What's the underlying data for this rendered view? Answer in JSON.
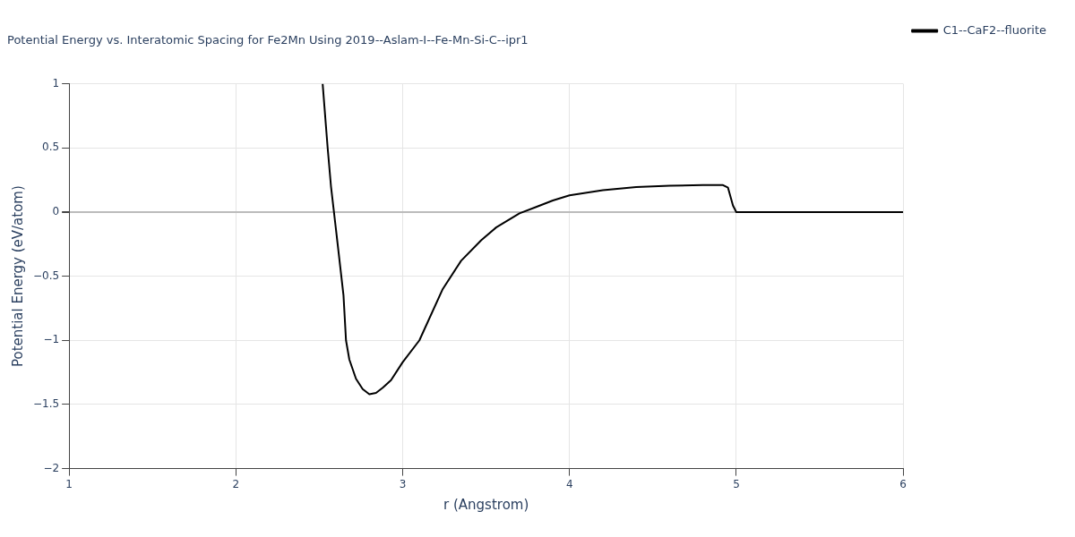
{
  "chart_data": {
    "type": "line",
    "title": "Potential Energy vs. Interatomic Spacing for Fe2Mn Using 2019--Aslam-I--Fe-Mn-Si-C--ipr1",
    "xlabel": "r (Angstrom)",
    "ylabel": "Potential Energy (eV/atom)",
    "xlim": [
      1,
      6
    ],
    "xticks": [
      1,
      2,
      3,
      4,
      5,
      6
    ],
    "ylim": [
      -2,
      1
    ],
    "yticks": [
      -2,
      -1.5,
      -1,
      -0.5,
      0,
      0.5,
      1
    ],
    "grid": true,
    "legend": "top right",
    "line_style": "solid",
    "marker": "none",
    "series": [
      {
        "name": "C1--CaF2--fluorite",
        "color": "#000000",
        "x": [
          2.52,
          2.55,
          2.57,
          2.61,
          2.645,
          2.66,
          2.68,
          2.72,
          2.76,
          2.8,
          2.84,
          2.88,
          2.93,
          3.0,
          3.1,
          3.24,
          3.35,
          3.47,
          3.56,
          3.7,
          3.8,
          3.9,
          4.0,
          4.2,
          4.4,
          4.6,
          4.8,
          4.92,
          4.95,
          4.98,
          5.0,
          6.0
        ],
        "values": [
          1.0,
          0.5,
          0.2,
          -0.25,
          -0.65,
          -1.0,
          -1.15,
          -1.3,
          -1.38,
          -1.42,
          -1.41,
          -1.37,
          -1.31,
          -1.17,
          -1.0,
          -0.6,
          -0.38,
          -0.22,
          -0.12,
          -0.01,
          0.04,
          0.09,
          0.13,
          0.17,
          0.195,
          0.205,
          0.21,
          0.21,
          0.19,
          0.05,
          0,
          0
        ]
      }
    ]
  }
}
